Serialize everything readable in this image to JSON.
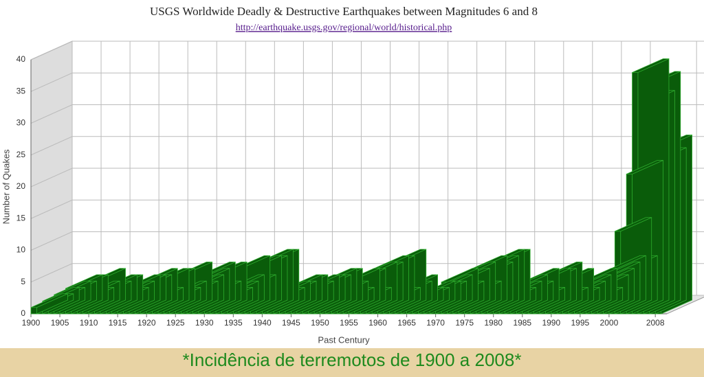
{
  "chart_data": {
    "type": "bar3d",
    "title": "USGS Worldwide Deadly & Destructive Earthquakes between Magnitudes 6 and 8",
    "subtitle": "http://earthquake.usgs.gov/regional/world/historical.php",
    "y_label": "Number of Quakes",
    "x_label": "Past Century",
    "caption": "*Incidência de terremotos de 1900 a 2008*",
    "color": "#0a5c0a",
    "x": [
      1900,
      1901,
      1902,
      1903,
      1904,
      1905,
      1906,
      1907,
      1908,
      1909,
      1910,
      1911,
      1912,
      1913,
      1914,
      1915,
      1916,
      1917,
      1918,
      1919,
      1920,
      1921,
      1922,
      1923,
      1924,
      1925,
      1926,
      1927,
      1928,
      1929,
      1930,
      1931,
      1932,
      1933,
      1934,
      1935,
      1936,
      1937,
      1938,
      1939,
      1940,
      1941,
      1942,
      1943,
      1944,
      1945,
      1946,
      1947,
      1948,
      1949,
      1950,
      1951,
      1952,
      1953,
      1954,
      1955,
      1956,
      1957,
      1958,
      1959,
      1960,
      1961,
      1962,
      1963,
      1964,
      1965,
      1966,
      1967,
      1968,
      1969,
      1970,
      1971,
      1972,
      1973,
      1974,
      1975,
      1976,
      1977,
      1978,
      1979,
      1980,
      1981,
      1982,
      1983,
      1984,
      1985,
      1986,
      1987,
      1988,
      1989,
      1990,
      1991,
      1992,
      1993,
      1994,
      1995,
      1996,
      1997,
      1998,
      1999,
      2000,
      2001,
      2002,
      2003,
      2004,
      2005,
      2006,
      2007,
      2008
    ],
    "values": [
      1,
      1,
      2,
      2,
      3,
      3,
      4,
      4,
      2,
      3,
      5,
      3,
      4,
      4,
      2,
      3,
      4,
      4,
      4,
      5,
      2,
      5,
      5,
      2,
      3,
      6,
      3,
      4,
      5,
      6,
      3,
      6,
      2,
      3,
      4,
      7,
      4,
      7,
      7,
      8,
      8,
      2,
      3,
      3,
      4,
      4,
      3,
      4,
      4,
      4,
      5,
      5,
      3,
      2,
      5,
      5,
      2,
      6,
      6,
      7,
      7,
      2,
      8,
      3,
      4,
      2,
      2,
      3,
      3,
      3,
      4,
      5,
      3,
      5,
      6,
      3,
      7,
      6,
      7,
      8,
      8,
      2,
      3,
      4,
      3,
      5,
      2,
      5,
      5,
      6,
      2,
      5,
      2,
      3,
      4,
      5,
      2,
      4,
      5,
      6,
      7,
      13,
      7,
      22,
      38,
      33,
      36,
      24,
      26
    ],
    "xlim": [
      1900,
      2010
    ],
    "xticks": [
      1900,
      1905,
      1910,
      1915,
      1920,
      1925,
      1930,
      1935,
      1940,
      1945,
      1950,
      1955,
      1960,
      1965,
      1970,
      1975,
      1980,
      1985,
      1990,
      1995,
      2000,
      2008
    ],
    "ylim": [
      0,
      40
    ],
    "yticks": [
      0,
      5,
      10,
      15,
      20,
      25,
      30,
      35,
      40
    ],
    "grid": true
  }
}
